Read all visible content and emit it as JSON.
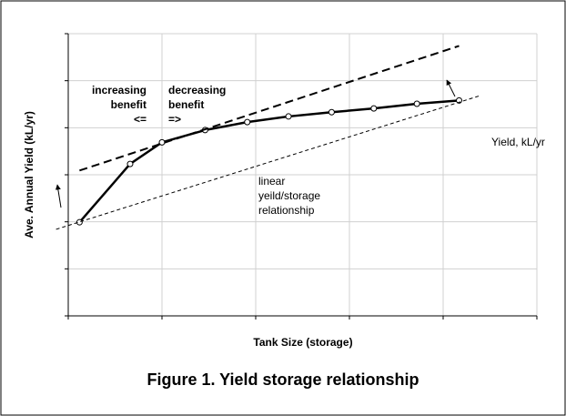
{
  "chart_data": {
    "type": "line",
    "caption": "Figure 1. Yield storage relationship",
    "xlabel": "Tank Size (storage)",
    "ylabel": "Ave. Annual Yield (kL/yr)",
    "xlim": [
      0,
      5
    ],
    "xticks": [
      0,
      1,
      2,
      3,
      4,
      5
    ],
    "ylim": [
      0,
      6
    ],
    "yticks": [
      0,
      1,
      2,
      3,
      4,
      5,
      6
    ],
    "grid": true,
    "series": [
      {
        "color": "#000000",
        "dash": "none",
        "width": 2.5,
        "markers": true,
        "x": [
          0.12,
          0.66,
          1.0,
          1.46,
          1.91,
          2.35,
          2.81,
          3.26,
          3.72,
          4.17
        ],
        "values": [
          1.99,
          3.23,
          3.69,
          3.95,
          4.12,
          4.24,
          4.33,
          4.41,
          4.51,
          4.58
        ]
      },
      {
        "color": "#000000",
        "dash": "9 5",
        "width": 2,
        "markers": false,
        "x": [
          0.12,
          4.17
        ],
        "values": [
          3.09,
          5.74
        ]
      },
      {
        "color": "#000000",
        "dash": "4 3",
        "width": 1,
        "markers": false,
        "x": [
          -0.13,
          4.39
        ],
        "values": [
          1.84,
          4.68
        ]
      }
    ],
    "annotations": [
      [
        "increasing",
        "benefit",
        "<="
      ],
      [
        "decreasing",
        "benefit",
        "=>"
      ],
      [
        "linear",
        "yeild/storage",
        "relationship"
      ],
      [
        "Yield, kL/yr"
      ]
    ]
  }
}
